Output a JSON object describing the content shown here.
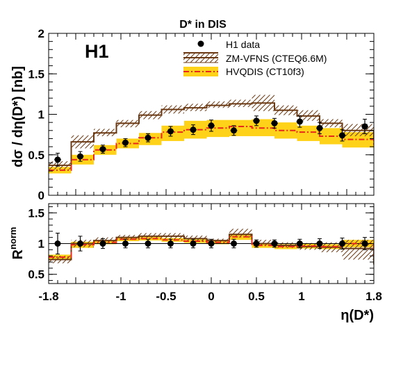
{
  "chart_data": [
    {
      "type": "line",
      "title": "D* in DIS",
      "xlabel": "η(D*)",
      "ylabel": "dσ / dη(D*) [nb]",
      "experiment_label": "H1",
      "xlim": [
        -1.8,
        1.8
      ],
      "ylim": [
        0,
        2
      ],
      "yticks": [
        "0",
        "0.5",
        "1",
        "1.5",
        "2"
      ],
      "bin_edges": [
        -1.8,
        -1.55,
        -1.3,
        -1.05,
        -0.8,
        -0.55,
        -0.3,
        -0.05,
        0.2,
        0.45,
        0.7,
        0.95,
        1.2,
        1.45,
        1.8
      ],
      "legend": {
        "position": "top-right",
        "entries": [
          "H1 data",
          "ZM-VFNS (CTEQ6.6M)",
          "HVQDIS (CT10f3)"
        ]
      },
      "series": [
        {
          "name": "H1 data",
          "kind": "points",
          "x": [
            -1.7,
            -1.45,
            -1.2,
            -0.95,
            -0.7,
            -0.45,
            -0.2,
            0.0,
            0.25,
            0.5,
            0.7,
            0.98,
            1.2,
            1.45,
            1.7
          ],
          "y": [
            0.44,
            0.48,
            0.57,
            0.65,
            0.71,
            0.79,
            0.81,
            0.86,
            0.8,
            0.92,
            0.89,
            0.91,
            0.83,
            0.74,
            0.85
          ],
          "err": [
            0.08,
            0.06,
            0.05,
            0.05,
            0.05,
            0.06,
            0.06,
            0.07,
            0.06,
            0.06,
            0.06,
            0.07,
            0.07,
            0.07,
            0.09
          ]
        },
        {
          "name": "ZM-VFNS (CTEQ6.6M)",
          "kind": "histogram-band",
          "y": [
            0.37,
            0.66,
            0.77,
            0.89,
            0.99,
            1.06,
            1.08,
            1.11,
            1.13,
            1.14,
            1.05,
            0.98,
            0.89,
            0.8,
            0.68
          ],
          "band_low": [
            0.32,
            0.58,
            0.73,
            0.84,
            0.94,
            1.01,
            1.04,
            1.08,
            1.09,
            1.04,
            0.99,
            0.92,
            0.84,
            0.73,
            0.61
          ],
          "band_high": [
            0.42,
            0.74,
            0.82,
            0.93,
            1.04,
            1.11,
            1.13,
            1.16,
            1.18,
            1.24,
            1.11,
            1.05,
            0.94,
            0.88,
            0.77
          ]
        },
        {
          "name": "HVQDIS (CT10f3)",
          "kind": "histogram-band",
          "y": [
            0.31,
            0.44,
            0.56,
            0.64,
            0.71,
            0.78,
            0.81,
            0.83,
            0.85,
            0.83,
            0.8,
            0.78,
            0.73,
            0.69,
            0.62
          ],
          "band_low": [
            0.27,
            0.38,
            0.5,
            0.58,
            0.62,
            0.67,
            0.7,
            0.72,
            0.73,
            0.73,
            0.7,
            0.67,
            0.63,
            0.59,
            0.5
          ],
          "band_high": [
            0.35,
            0.5,
            0.62,
            0.7,
            0.77,
            0.86,
            0.92,
            0.93,
            0.93,
            0.94,
            0.9,
            0.86,
            0.83,
            0.78,
            0.73
          ]
        }
      ]
    },
    {
      "type": "line",
      "xlabel": "η(D*)",
      "ylabel": "R^norm",
      "xlim": [
        -1.8,
        1.8
      ],
      "ylim": [
        0.35,
        1.65
      ],
      "xticks": [
        "-1.8",
        "-1",
        "-0.5",
        "0",
        "0.5",
        "1",
        "1.8"
      ],
      "yticks": [
        "0.5",
        "1",
        "1.5"
      ],
      "reference_line": 1,
      "series": [
        {
          "name": "H1 data",
          "kind": "points",
          "x": [
            -1.7,
            -1.45,
            -1.2,
            -0.95,
            -0.7,
            -0.45,
            -0.2,
            0.0,
            0.25,
            0.5,
            0.7,
            0.98,
            1.2,
            1.45,
            1.7
          ],
          "y": [
            1.0,
            1.0,
            1.0,
            1.0,
            1.0,
            1.0,
            1.0,
            1.0,
            1.0,
            1.0,
            1.0,
            1.0,
            1.0,
            1.0,
            1.0
          ],
          "err": [
            0.17,
            0.12,
            0.08,
            0.07,
            0.07,
            0.07,
            0.07,
            0.07,
            0.07,
            0.06,
            0.06,
            0.07,
            0.08,
            0.09,
            0.1
          ]
        },
        {
          "name": "ZM-VFNS (CTEQ6.6M)",
          "kind": "histogram-band",
          "y": [
            0.74,
            1.0,
            1.05,
            1.1,
            1.12,
            1.12,
            1.08,
            1.05,
            1.15,
            1.0,
            0.97,
            0.95,
            0.94,
            0.92,
            0.66
          ],
          "band_low": [
            0.68,
            0.94,
            1.01,
            1.06,
            1.08,
            1.07,
            1.04,
            1.02,
            1.1,
            0.96,
            0.93,
            0.9,
            0.86,
            0.74,
            0.45
          ],
          "band_high": [
            0.8,
            1.06,
            1.1,
            1.14,
            1.17,
            1.17,
            1.13,
            1.08,
            1.24,
            1.06,
            1.02,
            1.01,
            1.02,
            1.06,
            0.88
          ]
        },
        {
          "name": "HVQDIS (CT10f3)",
          "kind": "histogram-band",
          "y": [
            0.78,
            0.98,
            1.02,
            1.07,
            1.08,
            1.06,
            1.04,
            1.02,
            1.11,
            0.97,
            0.95,
            0.96,
            0.95,
            1.0,
            0.8
          ],
          "band_low": [
            0.74,
            0.93,
            0.99,
            1.04,
            1.05,
            1.03,
            1.01,
            0.99,
            1.06,
            0.93,
            0.91,
            0.92,
            0.91,
            0.94,
            0.74
          ],
          "band_high": [
            0.82,
            1.03,
            1.05,
            1.1,
            1.11,
            1.09,
            1.07,
            1.05,
            1.16,
            1.01,
            0.99,
            1.0,
            0.99,
            1.06,
            0.86
          ]
        }
      ]
    }
  ],
  "colors": {
    "data": "#000000",
    "zm_line": "#6b3a14",
    "zm_hatch": "#6b3a14",
    "hvq_line": "#e8261c",
    "hvq_band": "#ffd21a"
  }
}
